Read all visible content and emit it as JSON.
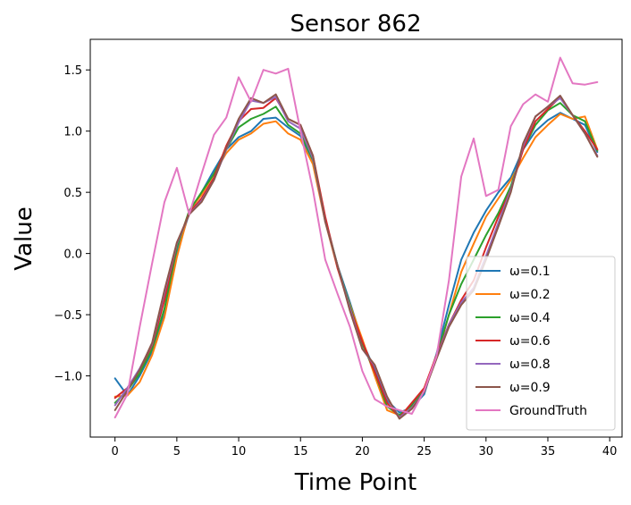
{
  "chart_data": {
    "type": "line",
    "title": "Sensor 862",
    "xlabel": "Time Point",
    "ylabel": "Value",
    "xlim": [
      -2,
      41
    ],
    "ylim": [
      -1.5,
      1.75
    ],
    "xticks": [
      0,
      5,
      10,
      15,
      20,
      25,
      30,
      35,
      40
    ],
    "xtick_labels": [
      "0",
      "5",
      "10",
      "15",
      "20",
      "25",
      "30",
      "35",
      "40"
    ],
    "yticks": [
      -1.0,
      -0.5,
      0.0,
      0.5,
      1.0,
      1.5
    ],
    "ytick_labels": [
      "−1.0",
      "−0.5",
      "0.0",
      "0.5",
      "1.0",
      "1.5"
    ],
    "legend_position": "lower-right",
    "x": [
      0,
      1,
      2,
      3,
      4,
      5,
      6,
      7,
      8,
      9,
      10,
      11,
      12,
      13,
      14,
      15,
      16,
      17,
      18,
      19,
      20,
      21,
      22,
      23,
      24,
      25,
      26,
      27,
      28,
      29,
      30,
      31,
      32,
      33,
      34,
      35,
      36,
      37,
      38,
      39
    ],
    "series": [
      {
        "name": "ω=0.1",
        "color": "#1f77b4",
        "values": [
          -1.02,
          -1.16,
          -1.0,
          -0.8,
          -0.5,
          0.0,
          0.33,
          0.5,
          0.68,
          0.85,
          0.95,
          1.0,
          1.1,
          1.11,
          1.03,
          0.96,
          0.76,
          0.28,
          -0.1,
          -0.4,
          -0.72,
          -0.95,
          -1.2,
          -1.3,
          -1.26,
          -1.15,
          -0.82,
          -0.42,
          -0.05,
          0.17,
          0.35,
          0.5,
          0.62,
          0.85,
          1.0,
          1.09,
          1.15,
          1.1,
          1.05,
          0.83
        ]
      },
      {
        "name": "ω=0.2",
        "color": "#ff7f0e",
        "values": [
          -1.17,
          -1.16,
          -1.05,
          -0.83,
          -0.52,
          -0.03,
          0.35,
          0.48,
          0.65,
          0.82,
          0.93,
          0.98,
          1.06,
          1.08,
          0.98,
          0.93,
          0.73,
          0.26,
          -0.12,
          -0.42,
          -0.7,
          -1.0,
          -1.28,
          -1.32,
          -1.25,
          -1.13,
          -0.85,
          -0.5,
          -0.15,
          0.08,
          0.3,
          0.45,
          0.6,
          0.78,
          0.95,
          1.05,
          1.14,
          1.1,
          1.12,
          0.85
        ]
      },
      {
        "name": "ω=0.4",
        "color": "#2ca02c",
        "values": [
          -1.22,
          -1.12,
          -0.98,
          -0.78,
          -0.45,
          0.05,
          0.35,
          0.5,
          0.65,
          0.85,
          1.03,
          1.1,
          1.14,
          1.2,
          1.05,
          0.98,
          0.77,
          0.28,
          -0.1,
          -0.43,
          -0.74,
          -0.97,
          -1.25,
          -1.32,
          -1.24,
          -1.12,
          -0.84,
          -0.5,
          -0.25,
          -0.05,
          0.15,
          0.33,
          0.55,
          0.85,
          1.05,
          1.17,
          1.23,
          1.13,
          1.08,
          0.84
        ]
      },
      {
        "name": "ω=0.6",
        "color": "#d62728",
        "values": [
          -1.18,
          -1.1,
          -0.95,
          -0.75,
          -0.38,
          0.08,
          0.33,
          0.45,
          0.62,
          0.88,
          1.08,
          1.18,
          1.19,
          1.27,
          1.1,
          1.05,
          0.8,
          0.3,
          -0.12,
          -0.45,
          -0.72,
          -0.97,
          -1.22,
          -1.34,
          -1.22,
          -1.1,
          -0.83,
          -0.58,
          -0.38,
          -0.22,
          0.05,
          0.3,
          0.52,
          0.85,
          1.08,
          1.18,
          1.28,
          1.13,
          1.0,
          0.85
        ]
      },
      {
        "name": "ω=0.8",
        "color": "#9467bd",
        "values": [
          -1.24,
          -1.1,
          -0.94,
          -0.74,
          -0.32,
          0.08,
          0.32,
          0.43,
          0.6,
          0.85,
          1.07,
          1.25,
          1.23,
          1.28,
          1.08,
          1.02,
          0.78,
          0.26,
          -0.1,
          -0.45,
          -0.78,
          -0.92,
          -1.18,
          -1.34,
          -1.26,
          -1.13,
          -0.85,
          -0.58,
          -0.4,
          -0.28,
          -0.02,
          0.25,
          0.52,
          0.88,
          1.12,
          1.2,
          1.27,
          1.13,
          0.98,
          0.8
        ]
      },
      {
        "name": "ω=0.9",
        "color": "#8c564b",
        "values": [
          -1.28,
          -1.12,
          -0.95,
          -0.73,
          -0.3,
          0.09,
          0.32,
          0.42,
          0.6,
          0.86,
          1.1,
          1.27,
          1.23,
          1.3,
          1.1,
          1.05,
          0.8,
          0.26,
          -0.1,
          -0.47,
          -0.78,
          -0.91,
          -1.17,
          -1.35,
          -1.27,
          -1.13,
          -0.86,
          -0.6,
          -0.42,
          -0.3,
          -0.05,
          0.22,
          0.5,
          0.9,
          1.12,
          1.2,
          1.29,
          1.13,
          0.98,
          0.79
        ]
      },
      {
        "name": "GroundTruth",
        "color": "#e377c2",
        "values": [
          -1.34,
          -1.15,
          -0.6,
          -0.08,
          0.42,
          0.7,
          0.32,
          0.65,
          0.97,
          1.11,
          1.44,
          1.24,
          1.5,
          1.47,
          1.51,
          1.0,
          0.52,
          -0.05,
          -0.33,
          -0.6,
          -0.96,
          -1.19,
          -1.25,
          -1.28,
          -1.31,
          -1.12,
          -0.84,
          -0.22,
          0.63,
          0.94,
          0.47,
          0.52,
          1.04,
          1.22,
          1.3,
          1.24,
          1.6,
          1.39,
          1.38,
          1.4
        ]
      }
    ]
  }
}
